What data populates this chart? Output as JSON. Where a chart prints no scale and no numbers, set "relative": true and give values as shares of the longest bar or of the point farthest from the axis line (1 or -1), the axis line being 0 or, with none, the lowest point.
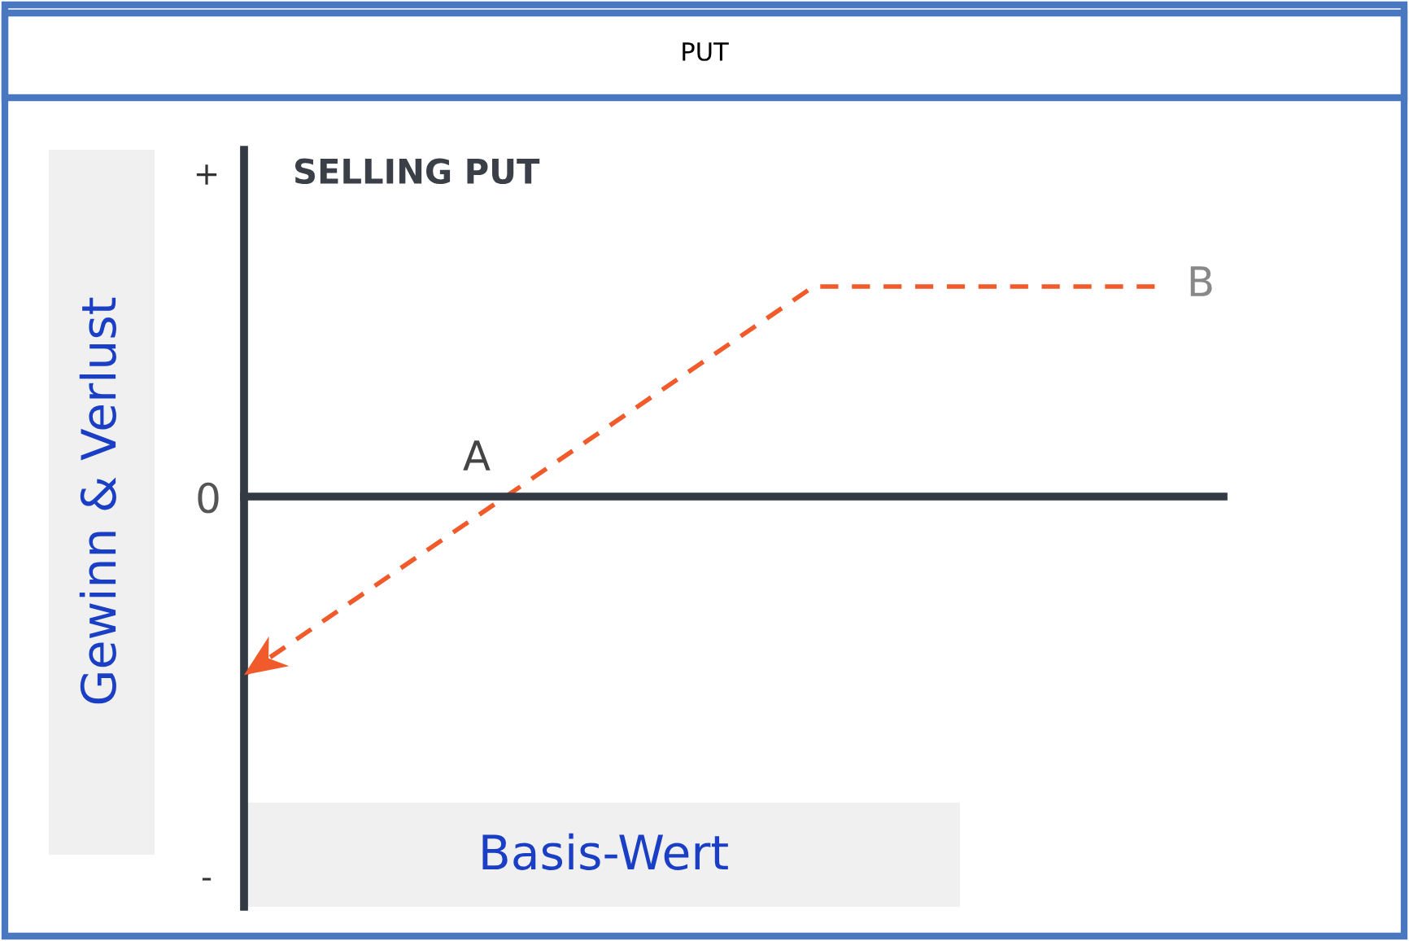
{
  "chart_data": {
    "type": "line",
    "title": "PUT",
    "subtitle": "SELLING PUT",
    "ylabel": "Gewinn & Verlust",
    "xlabel": "Basis-Wert",
    "relative": true,
    "categories": [
      null,
      null,
      null,
      null,
      null,
      null,
      null,
      null,
      null
    ],
    "series": [
      {
        "color": "#f15a2b",
        "values": [
          -0.85,
          -0.48,
          -0.11,
          0.26,
          0.63,
          1,
          1,
          1,
          1
        ]
      }
    ],
    "line_style": "dashed",
    "marker": "none",
    "legend": false,
    "annotations": [
      "A",
      "B",
      "+",
      "0",
      "-"
    ]
  }
}
